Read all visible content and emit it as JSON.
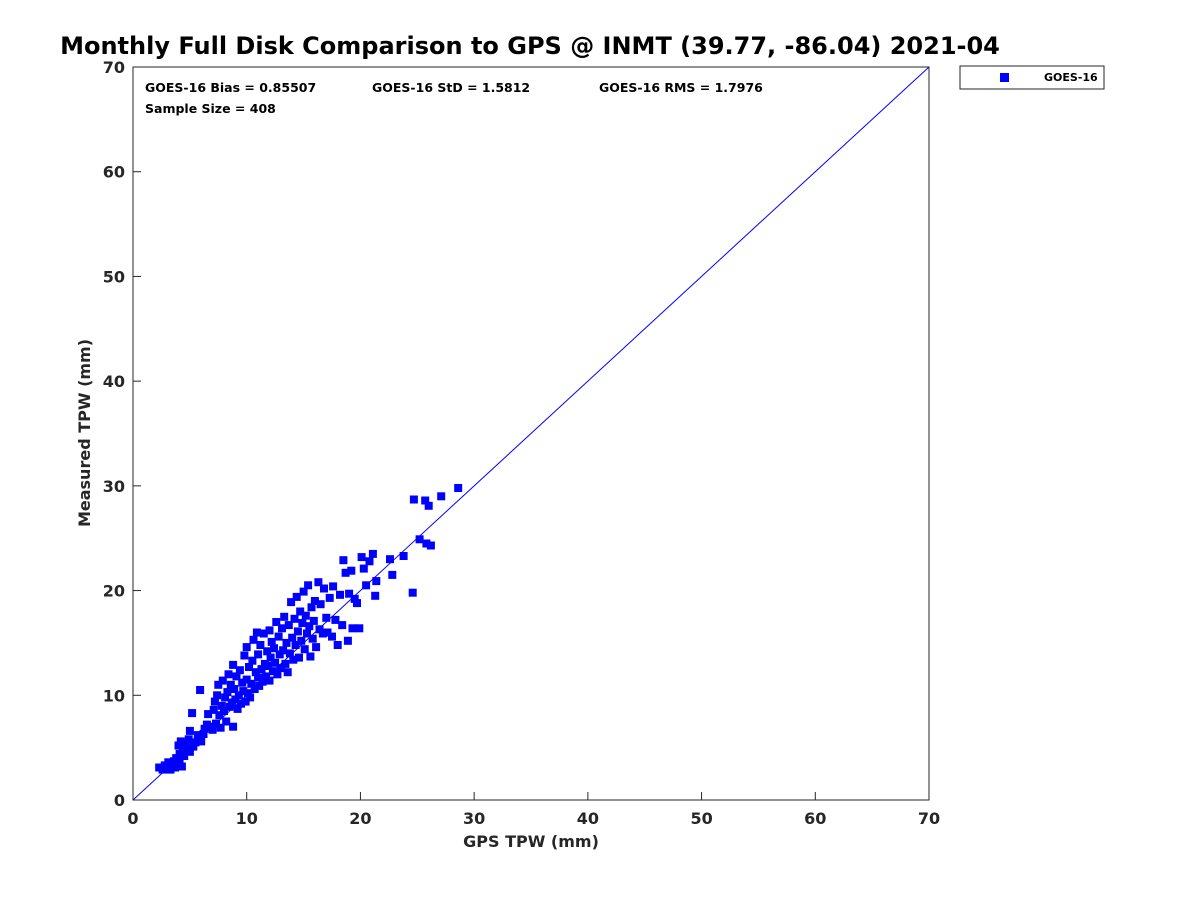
{
  "chart_data": {
    "type": "scatter",
    "title": "Monthly Full Disk Comparison to GPS @ INMT (39.77, -86.04) 2021-04",
    "xlabel": "GPS TPW (mm)",
    "ylabel": "Measured TPW (mm)",
    "xlim": [
      0,
      70
    ],
    "ylim": [
      0,
      70
    ],
    "xticks": [
      "0",
      "10",
      "20",
      "30",
      "40",
      "50",
      "60",
      "70"
    ],
    "yticks": [
      "0",
      "10",
      "20",
      "30",
      "40",
      "50",
      "60",
      "70"
    ],
    "grid": false,
    "legend_position": "outside top-right",
    "stats": {
      "bias": "GOES-16 Bias = 0.85507",
      "std": "GOES-16 StD = 1.5812",
      "rms": "GOES-16 RMS = 1.7976",
      "sample": "Sample Size = 408"
    },
    "reference_line": {
      "from": [
        0,
        0
      ],
      "to": [
        70,
        70
      ]
    },
    "series_color": "#0000ff",
    "series": [
      {
        "name": "GOES-16",
        "points": [
          [
            2.3,
            3.1
          ],
          [
            2.6,
            2.9
          ],
          [
            2.8,
            3.3
          ],
          [
            3.0,
            3.0
          ],
          [
            3.1,
            3.6
          ],
          [
            3.3,
            2.9
          ],
          [
            3.4,
            3.3
          ],
          [
            3.6,
            3.7
          ],
          [
            3.7,
            3.1
          ],
          [
            3.8,
            4.0
          ],
          [
            3.9,
            3.3
          ],
          [
            4.0,
            5.2
          ],
          [
            4.1,
            4.4
          ],
          [
            4.1,
            3.6
          ],
          [
            4.2,
            5.6
          ],
          [
            4.3,
            3.2
          ],
          [
            4.4,
            4.8
          ],
          [
            4.5,
            4.2
          ],
          [
            4.6,
            5.4
          ],
          [
            4.7,
            4.9
          ],
          [
            4.9,
            5.8
          ],
          [
            5.0,
            4.6
          ],
          [
            5.0,
            6.6
          ],
          [
            5.2,
            8.3
          ],
          [
            5.3,
            5.1
          ],
          [
            5.5,
            5.5
          ],
          [
            5.7,
            6.2
          ],
          [
            5.9,
            10.5
          ],
          [
            6.0,
            5.6
          ],
          [
            6.2,
            6.3
          ],
          [
            6.3,
            6.8
          ],
          [
            6.5,
            7.2
          ],
          [
            6.6,
            8.2
          ],
          [
            6.8,
            7.0
          ],
          [
            7.0,
            6.7
          ],
          [
            7.1,
            8.6
          ],
          [
            7.2,
            9.4
          ],
          [
            7.3,
            7.3
          ],
          [
            7.4,
            10.0
          ],
          [
            7.5,
            11.0
          ],
          [
            7.6,
            8.1
          ],
          [
            7.7,
            6.9
          ],
          [
            7.8,
            9.0
          ],
          [
            7.9,
            11.4
          ],
          [
            8.0,
            8.5
          ],
          [
            8.1,
            9.8
          ],
          [
            8.2,
            7.5
          ],
          [
            8.3,
            10.3
          ],
          [
            8.4,
            12.0
          ],
          [
            8.5,
            8.9
          ],
          [
            8.6,
            11.0
          ],
          [
            8.7,
            9.3
          ],
          [
            8.8,
            12.9
          ],
          [
            8.8,
            7.0
          ],
          [
            8.9,
            10.6
          ],
          [
            9.0,
            9.6
          ],
          [
            9.1,
            11.8
          ],
          [
            9.2,
            8.7
          ],
          [
            9.3,
            10.0
          ],
          [
            9.4,
            12.4
          ],
          [
            9.5,
            9.2
          ],
          [
            9.6,
            11.2
          ],
          [
            9.7,
            10.4
          ],
          [
            9.8,
            13.8
          ],
          [
            9.9,
            9.4
          ],
          [
            10.0,
            11.5
          ],
          [
            10.0,
            14.6
          ],
          [
            10.1,
            10.2
          ],
          [
            10.2,
            12.7
          ],
          [
            10.3,
            9.8
          ],
          [
            10.4,
            11.1
          ],
          [
            10.5,
            13.3
          ],
          [
            10.6,
            15.3
          ],
          [
            10.7,
            10.6
          ],
          [
            10.8,
            12.2
          ],
          [
            10.9,
            16.0
          ],
          [
            11.0,
            11.7
          ],
          [
            11.0,
            13.9
          ],
          [
            11.1,
            10.9
          ],
          [
            11.2,
            14.8
          ],
          [
            11.3,
            12.5
          ],
          [
            11.4,
            11.3
          ],
          [
            11.5,
            15.9
          ],
          [
            11.6,
            13.0
          ],
          [
            11.7,
            11.8
          ],
          [
            11.8,
            14.2
          ],
          [
            11.9,
            12.8
          ],
          [
            12.0,
            16.2
          ],
          [
            12.0,
            11.4
          ],
          [
            12.1,
            13.6
          ],
          [
            12.2,
            15.1
          ],
          [
            12.3,
            12.3
          ],
          [
            12.4,
            14.5
          ],
          [
            12.5,
            13.1
          ],
          [
            12.6,
            17.0
          ],
          [
            12.7,
            12.0
          ],
          [
            12.8,
            15.6
          ],
          [
            12.9,
            13.9
          ],
          [
            13.0,
            12.6
          ],
          [
            13.1,
            16.4
          ],
          [
            13.2,
            14.3
          ],
          [
            13.3,
            17.5
          ],
          [
            13.4,
            13.0
          ],
          [
            13.5,
            15.0
          ],
          [
            13.6,
            12.2
          ],
          [
            13.7,
            16.7
          ],
          [
            13.8,
            14.0
          ],
          [
            13.9,
            18.9
          ],
          [
            14.0,
            15.5
          ],
          [
            14.1,
            13.4
          ],
          [
            14.2,
            17.3
          ],
          [
            14.3,
            14.8
          ],
          [
            14.4,
            19.4
          ],
          [
            14.5,
            16.1
          ],
          [
            14.6,
            13.6
          ],
          [
            14.7,
            18.0
          ],
          [
            14.8,
            15.2
          ],
          [
            14.9,
            16.9
          ],
          [
            15.0,
            19.9
          ],
          [
            15.1,
            14.4
          ],
          [
            15.2,
            17.6
          ],
          [
            15.3,
            15.9
          ],
          [
            15.4,
            20.5
          ],
          [
            15.5,
            16.6
          ],
          [
            15.6,
            13.7
          ],
          [
            15.7,
            18.4
          ],
          [
            15.8,
            15.4
          ],
          [
            15.9,
            17.1
          ],
          [
            16.0,
            19.0
          ],
          [
            16.1,
            14.6
          ],
          [
            16.3,
            20.8
          ],
          [
            16.4,
            16.3
          ],
          [
            16.5,
            18.7
          ],
          [
            16.7,
            15.9
          ],
          [
            16.8,
            20.2
          ],
          [
            17.0,
            17.4
          ],
          [
            17.1,
            16.0
          ],
          [
            17.3,
            19.3
          ],
          [
            17.5,
            15.6
          ],
          [
            17.6,
            20.4
          ],
          [
            17.8,
            17.2
          ],
          [
            18.0,
            14.8
          ],
          [
            18.2,
            19.6
          ],
          [
            18.4,
            16.7
          ],
          [
            18.5,
            22.9
          ],
          [
            18.7,
            21.7
          ],
          [
            18.9,
            15.2
          ],
          [
            19.0,
            19.7
          ],
          [
            19.2,
            21.9
          ],
          [
            19.3,
            16.4
          ],
          [
            19.5,
            19.2
          ],
          [
            19.7,
            18.8
          ],
          [
            19.9,
            16.4
          ],
          [
            20.1,
            23.2
          ],
          [
            20.3,
            22.1
          ],
          [
            20.5,
            20.5
          ],
          [
            20.8,
            22.8
          ],
          [
            21.1,
            23.5
          ],
          [
            21.3,
            19.5
          ],
          [
            21.4,
            20.9
          ],
          [
            22.6,
            23.0
          ],
          [
            22.8,
            21.5
          ],
          [
            23.8,
            23.3
          ],
          [
            24.6,
            19.8
          ],
          [
            24.7,
            28.7
          ],
          [
            25.2,
            24.9
          ],
          [
            25.7,
            28.6
          ],
          [
            25.8,
            24.5
          ],
          [
            26.0,
            28.1
          ],
          [
            26.2,
            24.3
          ],
          [
            27.1,
            29.0
          ],
          [
            28.6,
            29.8
          ]
        ]
      }
    ]
  }
}
